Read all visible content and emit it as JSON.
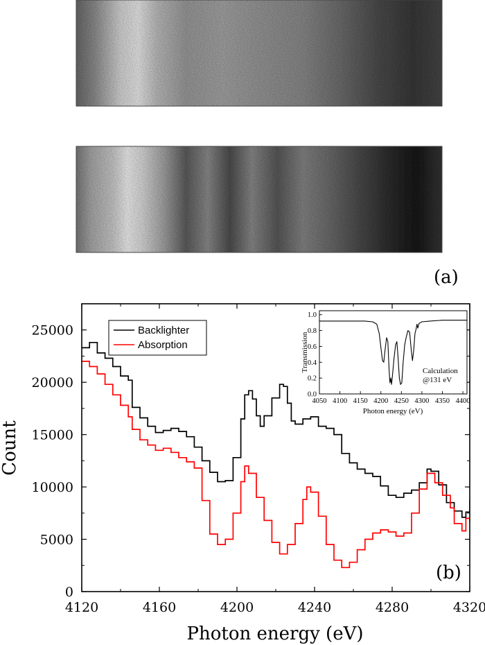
{
  "panel_a": {
    "label": "(a)",
    "images": [
      {
        "name": "backlighter-spectrum-image"
      },
      {
        "name": "absorption-spectrum-image"
      }
    ]
  },
  "chart_data": [
    {
      "type": "line",
      "panel": "(b)",
      "title": "",
      "xlabel": "Photon energy (eV)",
      "ylabel": "Count",
      "xlim": [
        4120,
        4320
      ],
      "ylim": [
        0,
        27500
      ],
      "xticks": [
        4120,
        4160,
        4200,
        4240,
        4280,
        4320
      ],
      "yticks": [
        0,
        5000,
        10000,
        15000,
        20000,
        25000
      ],
      "grid": false,
      "legend": "top-left",
      "series": [
        {
          "name": "Backlighter",
          "color": "#000000",
          "points": [
            [
              4120,
              23300
            ],
            [
              4124,
              23800
            ],
            [
              4128,
              22800
            ],
            [
              4132,
              22300
            ],
            [
              4136,
              21500
            ],
            [
              4140,
              20600
            ],
            [
              4144,
              20200
            ],
            [
              4146,
              17600
            ],
            [
              4150,
              16600
            ],
            [
              4154,
              15800
            ],
            [
              4158,
              15200
            ],
            [
              4162,
              15400
            ],
            [
              4166,
              15600
            ],
            [
              4170,
              15300
            ],
            [
              4174,
              14800
            ],
            [
              4178,
              13800
            ],
            [
              4182,
              12500
            ],
            [
              4186,
              11400
            ],
            [
              4190,
              10500
            ],
            [
              4194,
              10600
            ],
            [
              4198,
              12800
            ],
            [
              4202,
              16500
            ],
            [
              4204,
              18800
            ],
            [
              4206,
              19200
            ],
            [
              4208,
              18400
            ],
            [
              4210,
              16800
            ],
            [
              4212,
              15800
            ],
            [
              4214,
              16800
            ],
            [
              4218,
              18500
            ],
            [
              4222,
              19800
            ],
            [
              4224,
              19600
            ],
            [
              4226,
              18000
            ],
            [
              4228,
              16300
            ],
            [
              4230,
              16000
            ],
            [
              4234,
              16500
            ],
            [
              4238,
              16700
            ],
            [
              4242,
              15800
            ],
            [
              4246,
              15600
            ],
            [
              4250,
              15000
            ],
            [
              4254,
              13200
            ],
            [
              4258,
              12300
            ],
            [
              4262,
              11700
            ],
            [
              4266,
              11300
            ],
            [
              4270,
              11000
            ],
            [
              4274,
              10100
            ],
            [
              4278,
              9200
            ],
            [
              4282,
              9000
            ],
            [
              4286,
              9400
            ],
            [
              4290,
              9700
            ],
            [
              4294,
              10400
            ],
            [
              4298,
              11700
            ],
            [
              4300,
              11500
            ],
            [
              4304,
              10200
            ],
            [
              4308,
              8500
            ],
            [
              4312,
              7700
            ],
            [
              4316,
              7100
            ],
            [
              4318,
              7600
            ],
            [
              4320,
              8800
            ]
          ]
        },
        {
          "name": "Absorption",
          "color": "#ff0000",
          "points": [
            [
              4120,
              22000
            ],
            [
              4124,
              21500
            ],
            [
              4128,
              20800
            ],
            [
              4132,
              19800
            ],
            [
              4136,
              18800
            ],
            [
              4140,
              17800
            ],
            [
              4144,
              16700
            ],
            [
              4146,
              15500
            ],
            [
              4150,
              14500
            ],
            [
              4154,
              14000
            ],
            [
              4158,
              13500
            ],
            [
              4162,
              13700
            ],
            [
              4166,
              13300
            ],
            [
              4170,
              12800
            ],
            [
              4174,
              12400
            ],
            [
              4178,
              11800
            ],
            [
              4182,
              8700
            ],
            [
              4186,
              5500
            ],
            [
              4190,
              4500
            ],
            [
              4194,
              5000
            ],
            [
              4198,
              7500
            ],
            [
              4202,
              10500
            ],
            [
              4204,
              12000
            ],
            [
              4206,
              11300
            ],
            [
              4210,
              9000
            ],
            [
              4214,
              6800
            ],
            [
              4218,
              4700
            ],
            [
              4222,
              3600
            ],
            [
              4226,
              4500
            ],
            [
              4230,
              6500
            ],
            [
              4234,
              8800
            ],
            [
              4236,
              10000
            ],
            [
              4238,
              9500
            ],
            [
              4242,
              7200
            ],
            [
              4246,
              4500
            ],
            [
              4250,
              3000
            ],
            [
              4254,
              2300
            ],
            [
              4258,
              2800
            ],
            [
              4262,
              4000
            ],
            [
              4266,
              5000
            ],
            [
              4270,
              5600
            ],
            [
              4274,
              5900
            ],
            [
              4278,
              5700
            ],
            [
              4282,
              5300
            ],
            [
              4286,
              5600
            ],
            [
              4290,
              7500
            ],
            [
              4294,
              9800
            ],
            [
              4298,
              11300
            ],
            [
              4302,
              10400
            ],
            [
              4306,
              9200
            ],
            [
              4310,
              8000
            ],
            [
              4312,
              6500
            ],
            [
              4316,
              5800
            ],
            [
              4318,
              7000
            ],
            [
              4320,
              6600
            ]
          ]
        }
      ]
    },
    {
      "type": "line",
      "panel": "inset",
      "title": "",
      "xlabel": "Photon energy (eV)",
      "ylabel": "Transmission",
      "xlim": [
        4050,
        4410
      ],
      "ylim": [
        0,
        1.05
      ],
      "xticks": [
        4050,
        4100,
        4150,
        4200,
        4250,
        4300,
        4350,
        4400
      ],
      "yticks": [
        0.0,
        0.2,
        0.4,
        0.6,
        0.8,
        1.0
      ],
      "yticklabels": [
        "0.0",
        "0.2",
        "0.4",
        "0.6",
        "0.8",
        "1.0"
      ],
      "grid": false,
      "annotation": [
        "Calculation",
        "@131 eV"
      ],
      "series": [
        {
          "name": "",
          "color": "#000000",
          "points": [
            [
              4050,
              0.92
            ],
            [
              4160,
              0.92
            ],
            [
              4180,
              0.91
            ],
            [
              4190,
              0.88
            ],
            [
              4196,
              0.76
            ],
            [
              4200,
              0.58
            ],
            [
              4204,
              0.42
            ],
            [
              4207,
              0.4
            ],
            [
              4210,
              0.55
            ],
            [
              4214,
              0.71
            ],
            [
              4217,
              0.66
            ],
            [
              4220,
              0.3
            ],
            [
              4222,
              0.14
            ],
            [
              4224,
              0.2
            ],
            [
              4226,
              0.12
            ],
            [
              4228,
              0.22
            ],
            [
              4232,
              0.45
            ],
            [
              4236,
              0.62
            ],
            [
              4239,
              0.66
            ],
            [
              4242,
              0.45
            ],
            [
              4245,
              0.2
            ],
            [
              4248,
              0.12
            ],
            [
              4251,
              0.14
            ],
            [
              4254,
              0.38
            ],
            [
              4258,
              0.62
            ],
            [
              4262,
              0.72
            ],
            [
              4266,
              0.8
            ],
            [
              4270,
              0.78
            ],
            [
              4274,
              0.56
            ],
            [
              4277,
              0.42
            ],
            [
              4280,
              0.55
            ],
            [
              4283,
              0.76
            ],
            [
              4286,
              0.82
            ],
            [
              4288,
              0.88
            ],
            [
              4290,
              0.83
            ],
            [
              4293,
              0.89
            ],
            [
              4300,
              0.91
            ],
            [
              4320,
              0.92
            ],
            [
              4350,
              0.93
            ],
            [
              4410,
              0.93
            ]
          ]
        }
      ]
    }
  ]
}
